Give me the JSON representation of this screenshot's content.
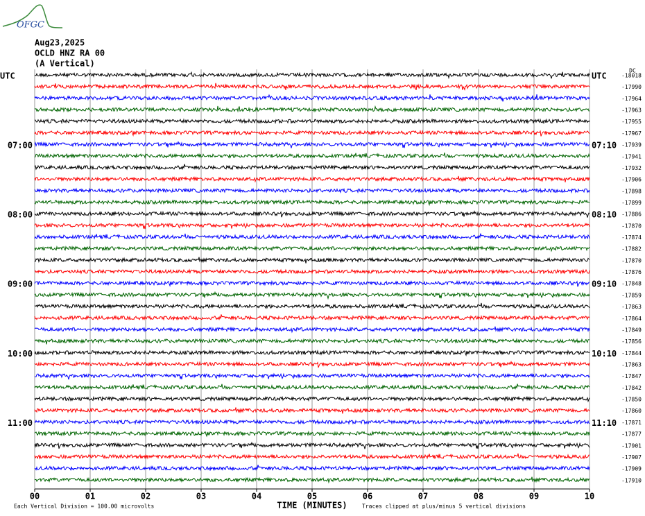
{
  "logo": "OFGC",
  "chart_data": {
    "type": "helicorder",
    "title_lines": [
      "Aug23,2025",
      "OCLD HNZ RA 00",
      "(A Vertical)"
    ],
    "xlabel": "TIME (MINUTES)",
    "xlim": [
      0,
      10
    ],
    "xticks": [
      {
        "value": 0,
        "label": "00"
      },
      {
        "value": 1,
        "label": "01"
      },
      {
        "value": 2,
        "label": "02"
      },
      {
        "value": 3,
        "label": "03"
      },
      {
        "value": 4,
        "label": "04"
      },
      {
        "value": 5,
        "label": "05"
      },
      {
        "value": 6,
        "label": "06"
      },
      {
        "value": 7,
        "label": "07"
      },
      {
        "value": 8,
        "label": "08"
      },
      {
        "value": 9,
        "label": "09"
      },
      {
        "value": 10,
        "label": "10"
      }
    ],
    "grid": true,
    "colors": [
      "#000000",
      "#ff0000",
      "#0000ff",
      "#006400"
    ],
    "offset_header": "DC",
    "left_labels": [
      "UTC",
      null,
      null,
      null,
      null,
      null,
      "07:00",
      null,
      null,
      null,
      null,
      null,
      "08:00",
      null,
      null,
      null,
      null,
      null,
      "09:00",
      null,
      null,
      null,
      null,
      null,
      "10:00",
      null,
      null,
      null,
      null,
      null,
      "11:00",
      null,
      null,
      null,
      null,
      null
    ],
    "right_labels": [
      "UTC",
      null,
      null,
      null,
      null,
      null,
      "07:10",
      null,
      null,
      null,
      null,
      null,
      "08:10",
      null,
      null,
      null,
      null,
      null,
      "09:10",
      null,
      null,
      null,
      null,
      null,
      "10:10",
      null,
      null,
      null,
      null,
      null,
      "11:10",
      null,
      null,
      null,
      null,
      null
    ],
    "dc_offsets": [
      -18018,
      -17990,
      -17964,
      -17963,
      -17955,
      -17967,
      -17939,
      -17941,
      -17932,
      -17906,
      -17898,
      -17899,
      -17886,
      -17870,
      -17874,
      -17882,
      -17870,
      -17876,
      -17848,
      -17859,
      -17863,
      -17864,
      -17849,
      -17856,
      -17844,
      -17863,
      -17847,
      -17842,
      -17850,
      -17860,
      -17871,
      -17877,
      -17901,
      -17907,
      -17909,
      -17910
    ],
    "footer_left": "Each Vertical Division =  100.00 microvolts",
    "footer_right": "Traces clipped at plus/minus 5 vertical divisions"
  }
}
